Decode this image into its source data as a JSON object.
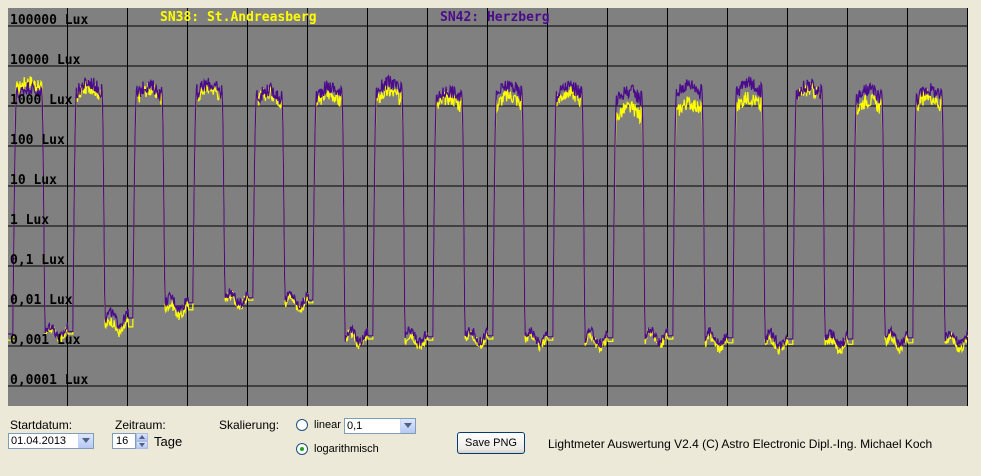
{
  "chart_data": {
    "type": "line",
    "title": "",
    "series": [
      {
        "name": "SN38: St.Andreasberg",
        "color": "#ffff00",
        "days": [
          {
            "peak": 4100,
            "night": 0.0014
          },
          {
            "peak": 3000,
            "night": 0.002
          },
          {
            "peak": 2600,
            "night": 0.003
          },
          {
            "peak": 2900,
            "night": 0.008
          },
          {
            "peak": 2100,
            "night": 0.014
          },
          {
            "peak": 2000,
            "night": 0.012
          },
          {
            "peak": 2300,
            "night": 0.0015
          },
          {
            "peak": 1600,
            "night": 0.0014
          },
          {
            "peak": 1800,
            "night": 0.0015
          },
          {
            "peak": 2200,
            "night": 0.0014
          },
          {
            "peak": 900,
            "night": 0.0013
          },
          {
            "peak": 1200,
            "night": 0.0015
          },
          {
            "peak": 1600,
            "night": 0.0012
          },
          {
            "peak": 2600,
            "night": 0.0011
          },
          {
            "peak": 1400,
            "night": 0.0011
          },
          {
            "peak": 1700,
            "night": 0.0012
          }
        ]
      },
      {
        "name": "SN42: Herzberg",
        "color": "#4b0c8c",
        "days": [
          {
            "peak": 2900,
            "night": 0.002
          },
          {
            "peak": 3800,
            "night": 0.0023
          },
          {
            "peak": 3200,
            "night": 0.005
          },
          {
            "peak": 3500,
            "night": 0.012
          },
          {
            "peak": 2500,
            "night": 0.016
          },
          {
            "peak": 3000,
            "night": 0.014
          },
          {
            "peak": 3800,
            "night": 0.0018
          },
          {
            "peak": 2400,
            "night": 0.0017
          },
          {
            "peak": 3200,
            "night": 0.0018
          },
          {
            "peak": 3100,
            "night": 0.0017
          },
          {
            "peak": 2400,
            "night": 0.0016
          },
          {
            "peak": 3500,
            "night": 0.0018
          },
          {
            "peak": 3700,
            "night": 0.0016
          },
          {
            "peak": 3300,
            "night": 0.0015
          },
          {
            "peak": 2500,
            "night": 0.0015
          },
          {
            "peak": 2600,
            "night": 0.0016
          }
        ]
      }
    ],
    "x_days": 16,
    "y_scale": "log",
    "ylim": [
      0.0001,
      100000
    ],
    "y_ticks": [
      {
        "value": 100000,
        "label": "100000 Lux"
      },
      {
        "value": 10000,
        "label": "10000 Lux"
      },
      {
        "value": 1000,
        "label": "1000 Lux"
      },
      {
        "value": 100,
        "label": "100 Lux"
      },
      {
        "value": 10,
        "label": "10 Lux"
      },
      {
        "value": 1,
        "label": "1 Lux"
      },
      {
        "value": 0.1,
        "label": "0,1 Lux"
      },
      {
        "value": 0.01,
        "label": "0,01 Lux"
      },
      {
        "value": 0.001,
        "label": "0,001 Lux"
      },
      {
        "value": 0.0001,
        "label": "0,0001 Lux"
      }
    ],
    "grid": true,
    "background": "#808080",
    "legend_position": "top"
  },
  "controls": {
    "startdatum_label": "Startdatum:",
    "startdatum_value": "01.04.2013",
    "zeitraum_label": "Zeitraum:",
    "zeitraum_value": "16",
    "zeitraum_unit": "Tage",
    "skalierung_label": "Skalierung:",
    "linear_label": "linear",
    "linear_value": "0,1",
    "log_label": "logarithmisch",
    "selected_scaling": "logarithmisch",
    "save_button": "Save PNG",
    "footer_text": "Lightmeter Auswertung V2.4  (C) Astro Electronic Dipl.-Ing. Michael Koch"
  }
}
